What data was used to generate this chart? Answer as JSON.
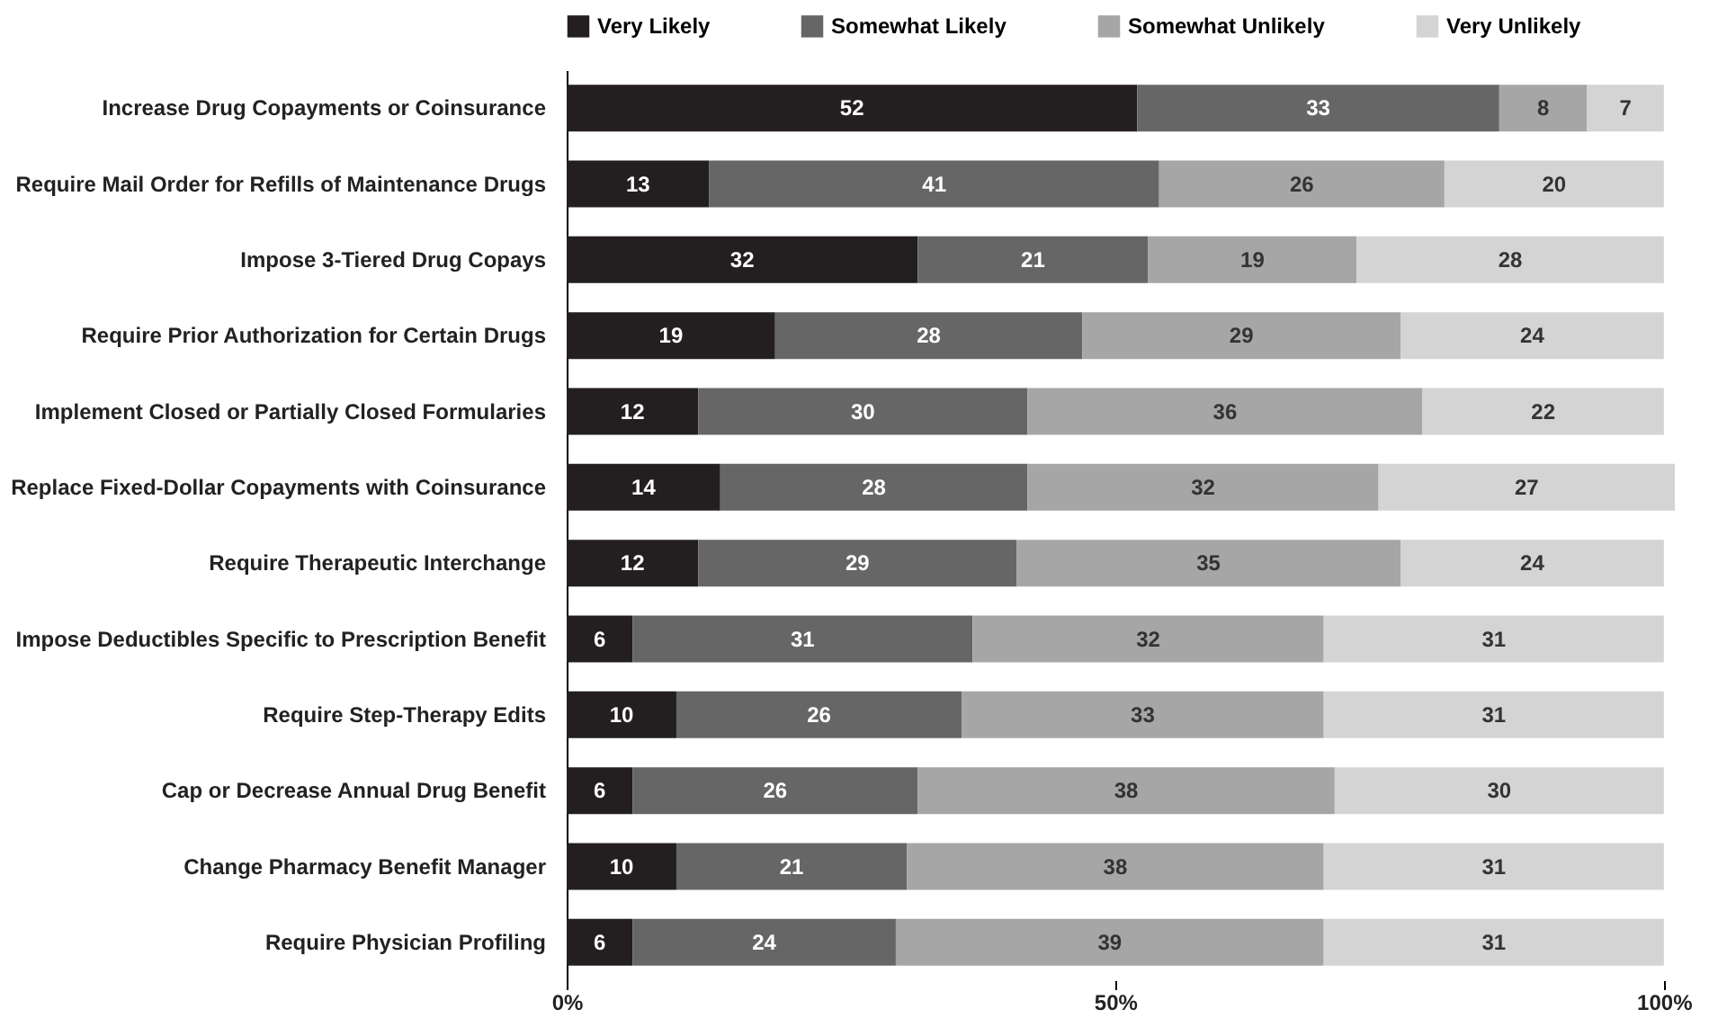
{
  "chart_data": {
    "type": "bar",
    "orientation": "horizontal",
    "stacked": true,
    "data_labels": true,
    "legend": "top",
    "grid": false,
    "categories": [
      "Increase Drug Copayments or Coinsurance",
      "Require Mail Order for Refills of Maintenance Drugs",
      "Impose 3-Tiered Drug Copays",
      "Require Prior Authorization for Certain Drugs",
      "Implement Closed or Partially Closed Formularies",
      "Replace Fixed-Dollar Copayments with Coinsurance",
      "Require Therapeutic Interchange",
      "Impose Deductibles Specific to Prescription Benefit",
      "Require Step-Therapy Edits",
      "Cap or Decrease Annual Drug Benefit",
      "Change Pharmacy Benefit Manager",
      "Require Physician Profiling"
    ],
    "series": [
      {
        "name": "Very Likely",
        "color": "#231f20",
        "values": [
          52,
          13,
          32,
          19,
          12,
          14,
          12,
          6,
          10,
          6,
          10,
          6
        ]
      },
      {
        "name": "Somewhat Likely",
        "color": "#666666",
        "values": [
          33,
          41,
          21,
          28,
          30,
          28,
          29,
          31,
          26,
          26,
          21,
          24
        ]
      },
      {
        "name": "Somewhat Unlikely",
        "color": "#a6a6a6",
        "values": [
          8,
          26,
          19,
          29,
          36,
          32,
          35,
          32,
          33,
          38,
          38,
          39
        ]
      },
      {
        "name": "Very Unlikely",
        "color": "#d4d4d4",
        "values": [
          7,
          20,
          28,
          24,
          22,
          27,
          24,
          31,
          31,
          30,
          31,
          31
        ]
      }
    ],
    "xlim": [
      0,
      101
    ],
    "xticks": [
      {
        "value": 0,
        "label": "0%"
      },
      {
        "value": 50,
        "label": "50%"
      },
      {
        "value": 100,
        "label": "100%"
      }
    ]
  }
}
